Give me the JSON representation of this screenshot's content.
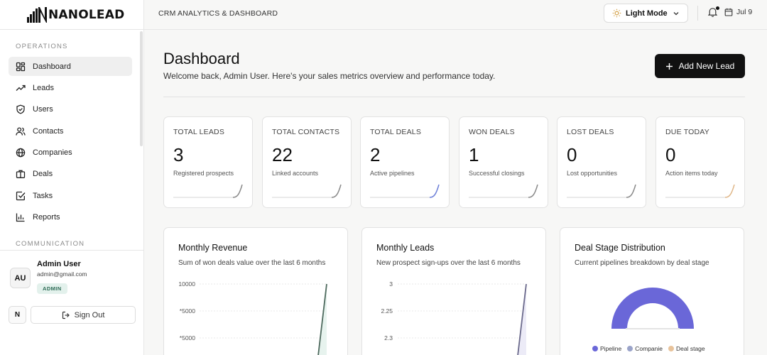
{
  "brand": {
    "name": "NANOLEAD"
  },
  "sidebar": {
    "section_operations": "OPERATIONS",
    "section_communication": "COMMUNICATION",
    "items": [
      {
        "label": "Dashboard",
        "icon": "grid-icon",
        "active": true
      },
      {
        "label": "Leads",
        "icon": "trending-up-icon"
      },
      {
        "label": "Users",
        "icon": "shield-icon"
      },
      {
        "label": "Contacts",
        "icon": "users-icon"
      },
      {
        "label": "Companies",
        "icon": "building-icon"
      },
      {
        "label": "Deals",
        "icon": "briefcase-icon"
      },
      {
        "label": "Tasks",
        "icon": "checkbox-icon"
      },
      {
        "label": "Reports",
        "icon": "bar-chart-icon"
      }
    ],
    "user": {
      "initials": "AU",
      "name": "Admin User",
      "email": "admin@gmail.com",
      "role": "ADMIN"
    },
    "n_button": "N",
    "signout_label": "Sign Out"
  },
  "header": {
    "breadcrumb": "CRM ANALYTICS & DASHBOARD",
    "mode_label": "Light Mode",
    "date": "Jul 9"
  },
  "main": {
    "title": "Dashboard",
    "subtitle": "Welcome back, Admin User. Here's your sales metrics overview and performance today.",
    "add_button": "Add New Lead"
  },
  "stats": [
    {
      "label": "TOTAL LEADS",
      "value": "3",
      "desc": "Registered prospects",
      "color": "#8a8a8a"
    },
    {
      "label": "TOTAL CONTACTS",
      "value": "22",
      "desc": "Linked accounts",
      "color": "#8a8a8a"
    },
    {
      "label": "TOTAL DEALS",
      "value": "2",
      "desc": "Active pipelines",
      "color": "#6c7fd8"
    },
    {
      "label": "WON DEALS",
      "value": "1",
      "desc": "Successful closings",
      "color": "#8a8a8a"
    },
    {
      "label": "LOST DEALS",
      "value": "0",
      "desc": "Lost opportunities",
      "color": "#8a8a8a"
    },
    {
      "label": "DUE TODAY",
      "value": "0",
      "desc": "Action items today",
      "color": "#e0b88a"
    }
  ],
  "charts": {
    "revenue": {
      "title": "Monthly Revenue",
      "subtitle": "Sum of won deals value over the last 6 months",
      "ticks": [
        "10000",
        "*5000",
        "*5000"
      ]
    },
    "leads": {
      "title": "Monthly Leads",
      "subtitle": "New prospect sign-ups over the last 6 months",
      "ticks": [
        "3",
        "2.25",
        "2.3"
      ]
    },
    "stages": {
      "title": "Deal Stage Distribution",
      "subtitle": "Current pipelines breakdown by deal stage",
      "legend": [
        {
          "label": "Pipeline",
          "color": "#6a67d8"
        },
        {
          "label": "Companie",
          "color": "#9aa3c9"
        },
        {
          "label": "Deal stage",
          "color": "#e8c39b"
        }
      ]
    }
  }
}
